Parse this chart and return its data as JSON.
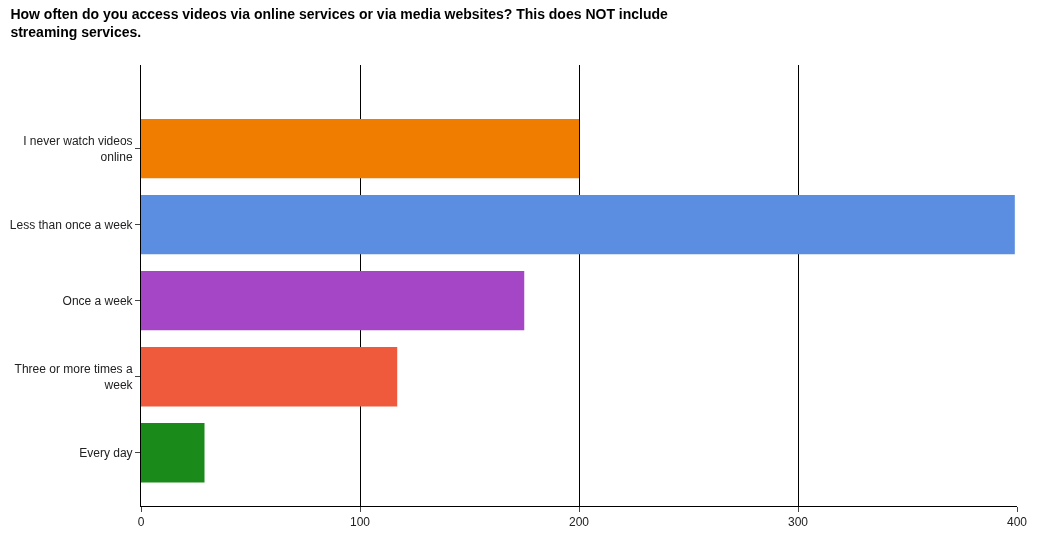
{
  "chart_data": {
    "type": "bar",
    "orientation": "horizontal",
    "title": "How often do you access videos via online services or via media websites? This does NOT include streaming services.",
    "categories": [
      "I never watch videos online",
      "Less than once a week",
      "Once a week",
      "Three or more times a week",
      "Every day"
    ],
    "values": [
      200,
      399,
      175,
      117,
      29
    ],
    "colors": [
      "#f07d00",
      "#5b8de0",
      "#a546c6",
      "#f05a3c",
      "#1a8a1a"
    ],
    "xlim": [
      0,
      400
    ],
    "xticks": [
      0,
      100,
      200,
      300,
      400
    ],
    "grid": "x"
  }
}
